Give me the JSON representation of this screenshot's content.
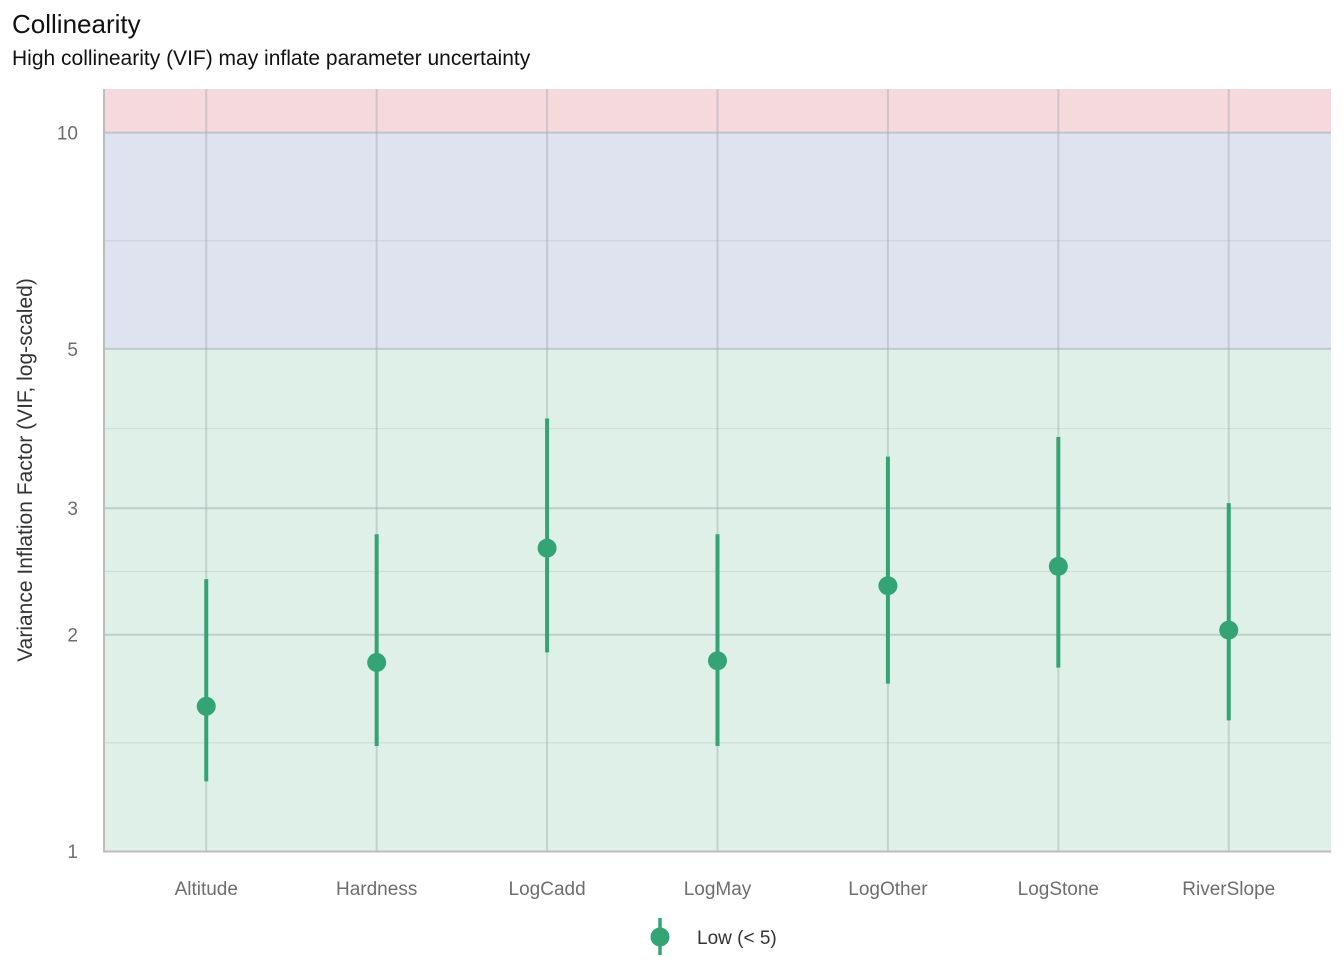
{
  "title": "Collinearity",
  "subtitle": "High collinearity (VIF) may inflate parameter uncertainty",
  "chart_data": {
    "type": "scatter",
    "subtype": "pointrange",
    "title": "Collinearity",
    "subtitle": "High collinearity (VIF) may inflate parameter uncertainty",
    "xlabel": "",
    "ylabel": "Variance Inflation Factor (VIF, log-scaled)",
    "yscale": "log10",
    "ylim": [
      1,
      11.5
    ],
    "yticks": [
      1,
      2,
      3,
      5,
      10
    ],
    "ytick_labels": [
      "1",
      "2",
      "3",
      "5",
      "10"
    ],
    "grid": true,
    "categories": [
      "Altitude",
      "Hardness",
      "LogCadd",
      "LogMay",
      "LogOther",
      "LogStone",
      "RiverSlope"
    ],
    "series": [
      {
        "name": "Low (< 5)",
        "color": "#35a474",
        "values": [
          1.59,
          1.83,
          2.64,
          1.84,
          2.34,
          2.49,
          2.03
        ],
        "lower": [
          1.25,
          1.4,
          1.89,
          1.4,
          1.71,
          1.8,
          1.52
        ],
        "upper": [
          2.39,
          2.76,
          4.0,
          2.76,
          3.54,
          3.77,
          3.05
        ]
      }
    ],
    "bands": [
      {
        "name": "low",
        "from": 1,
        "to": 5,
        "color": "#dff0e8"
      },
      {
        "name": "moderate",
        "from": 5,
        "to": 10,
        "color": "#dee3ef"
      },
      {
        "name": "high",
        "from": 10,
        "to": 11.5,
        "color": "#f5d9dd"
      }
    ],
    "legend": {
      "position": "bottom",
      "entries": [
        "Low (< 5)"
      ]
    }
  }
}
